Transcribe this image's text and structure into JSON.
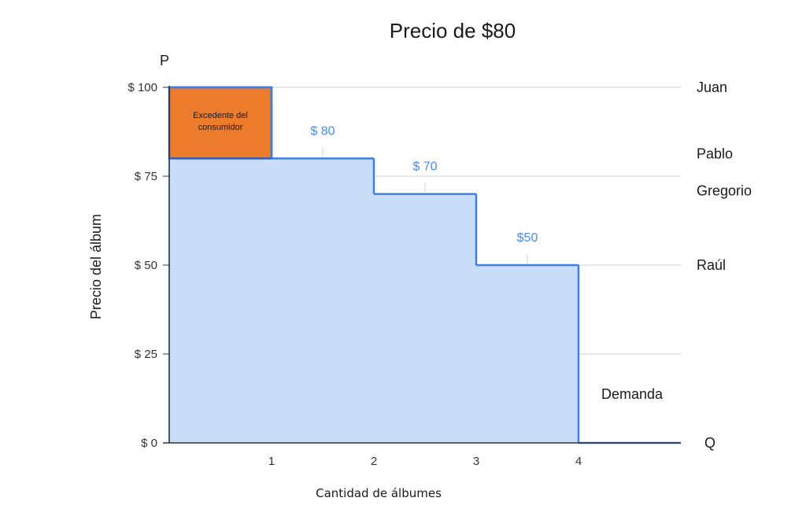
{
  "chart_data": {
    "type": "area",
    "title": "Precio de $80",
    "xlabel": "Cantidad de álbumes",
    "ylabel": "Precio del álbum",
    "p_label": "P",
    "q_label": "Q",
    "ylim": [
      0,
      100
    ],
    "xlim": [
      0,
      5
    ],
    "grid": true,
    "y_ticks": [
      {
        "value": 0,
        "label": "$ 0"
      },
      {
        "value": 25,
        "label": "$ 25"
      },
      {
        "value": 50,
        "label": "$ 50"
      },
      {
        "value": 75,
        "label": "$ 75"
      },
      {
        "value": 100,
        "label": "$ 100"
      }
    ],
    "x_ticks": [
      {
        "value": 1,
        "label": "1"
      },
      {
        "value": 2,
        "label": "2"
      },
      {
        "value": 3,
        "label": "3"
      },
      {
        "value": 4,
        "label": "4"
      }
    ],
    "demand_steps": [
      {
        "x_start": 0,
        "x_end": 1,
        "price": 100
      },
      {
        "x_start": 1,
        "x_end": 2,
        "price": 80
      },
      {
        "x_start": 2,
        "x_end": 3,
        "price": 70
      },
      {
        "x_start": 3,
        "x_end": 4,
        "price": 50
      },
      {
        "x_start": 4,
        "x_end": 5,
        "price": 0
      }
    ],
    "market_price": 80,
    "consumer_surplus": {
      "x_start": 0,
      "x_end": 1,
      "y_low": 80,
      "y_high": 100,
      "label_line1": "Excedente del",
      "label_line2": "consumidor"
    },
    "price_labels": [
      {
        "x": 1.5,
        "y": 80,
        "label": "$ 80"
      },
      {
        "x": 2.5,
        "y": 70,
        "label": "$ 70"
      },
      {
        "x": 3.5,
        "y": 50,
        "label": "$50"
      }
    ],
    "buyers": [
      {
        "name": "Juan",
        "price": 100
      },
      {
        "name": "Pablo",
        "price": 80
      },
      {
        "name": "Gregorio",
        "price": 70
      },
      {
        "name": "Raúl",
        "price": 50
      }
    ],
    "series_label": "Demanda",
    "colors": {
      "fill": "#c9dcf8",
      "line": "#3d7fe3",
      "surplus": "#ec7b2c",
      "surplus_stroke": "#2b5fbf",
      "price_text": "#4a8cf0"
    }
  }
}
